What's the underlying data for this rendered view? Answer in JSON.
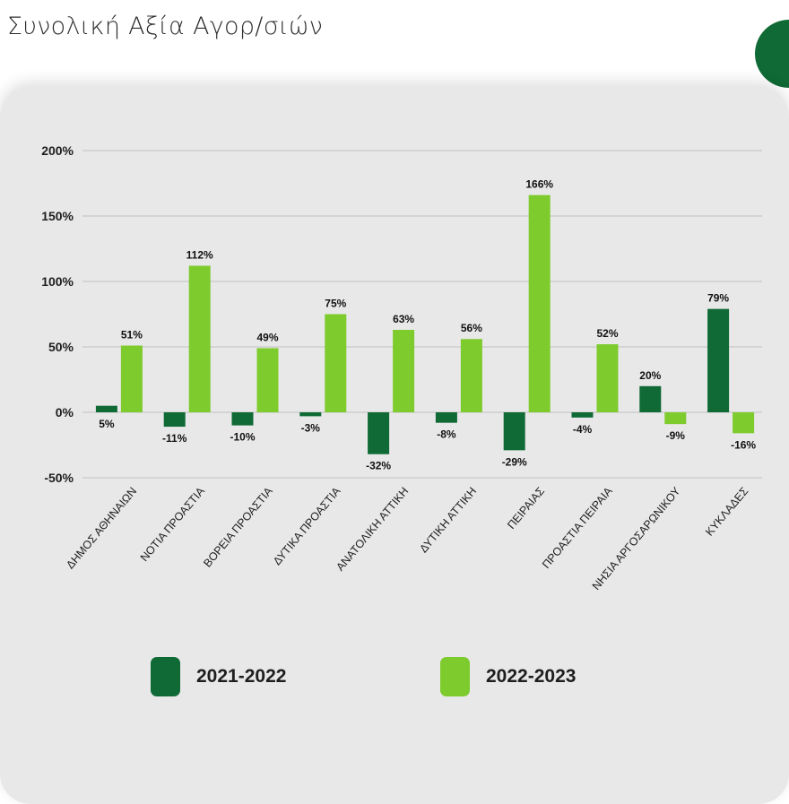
{
  "page": {
    "title": "Συνολική Αξία Αγορ/σιών"
  },
  "colors": {
    "series1": "#0f6a35",
    "series2": "#7ecb2d",
    "grid": "#c8c8c8",
    "card": "#e8e8e8"
  },
  "chart_data": {
    "type": "bar",
    "categories": [
      "ΔΗΜΟΣ ΑΘΗΝΑΙΩΝ",
      "ΝΟΤΙΑ ΠΡΟΑΣΤΙΑ",
      "ΒΟΡΕΙΑ ΠΡΟΑΣΤΙΑ",
      "ΔΥΤΙΚΑ ΠΡΟΑΣΤΙΑ",
      "ΑΝΑΤΟΛΙΚΗ ΑΤΤΙΚΗ",
      "ΔΥΤΙΚΗ ΑΤΤΙΚΗ",
      "ΠΕΙΡΑΙΑΣ",
      "ΠΡΟΑΣΤΙΑ ΠΕΙΡΑΙΑ",
      "ΝΗΣΙΑ ΑΡΓΟΣΑΡΩΝΙΚΟΥ",
      "ΚΥΚΛΑΔΕΣ"
    ],
    "series": [
      {
        "name": "2021-2022",
        "values": [
          5,
          -11,
          -10,
          -3,
          -32,
          -8,
          -29,
          -4,
          20,
          79
        ],
        "labels": [
          "5%",
          "-11%",
          "-10%",
          "-3%",
          "-32%",
          "-8%",
          "-29%",
          "-4%",
          "20%",
          "79%"
        ]
      },
      {
        "name": "2022-2023",
        "values": [
          51,
          112,
          49,
          75,
          63,
          56,
          166,
          52,
          -9,
          -16
        ],
        "labels": [
          "51%",
          "112%",
          "49%",
          "75%",
          "63%",
          "56%",
          "166%",
          "52%",
          "-9%",
          "-16%"
        ]
      }
    ],
    "yticks": [
      "200%",
      "150%",
      "100%",
      "50%",
      "0%",
      "-50%"
    ],
    "ytick_values": [
      200,
      150,
      100,
      50,
      0,
      -50
    ],
    "ylim": [
      -50,
      200
    ],
    "grid": true,
    "legend_position": "bottom"
  }
}
